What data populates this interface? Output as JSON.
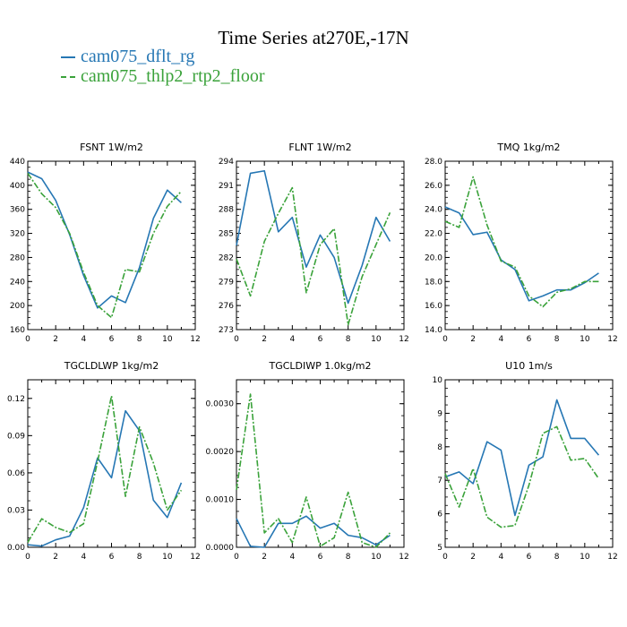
{
  "figure": {
    "title": "Time Series at270E,-17N"
  },
  "legend": [
    {
      "name": "cam075_dflt_rg",
      "color": "#2677b4",
      "style": "solid"
    },
    {
      "name": "cam075_thlp2_rtp2_floor",
      "color": "#3aa23a",
      "style": "dashdot"
    }
  ],
  "chart_data": [
    {
      "type": "line",
      "title": "FSNT   1W/m2",
      "x": [
        0,
        1,
        2,
        3,
        4,
        5,
        6,
        7,
        8,
        9,
        10,
        11
      ],
      "xlim": [
        0,
        12
      ],
      "xticks": [
        0,
        2,
        4,
        6,
        8,
        10,
        12
      ],
      "ylim": [
        160,
        440
      ],
      "yticks": [
        160,
        200,
        240,
        280,
        320,
        360,
        400,
        440
      ],
      "ytick_labels": [
        "160",
        "200",
        "240",
        "280",
        "320",
        "360",
        "400",
        "440"
      ],
      "series": [
        {
          "name": "cam075_dflt_rg",
          "values": [
            422,
            411,
            375,
            318,
            250,
            196,
            216,
            205,
            263,
            345,
            392,
            371
          ]
        },
        {
          "name": "cam075_thlp2_rtp2_floor",
          "values": [
            420,
            386,
            363,
            320,
            255,
            200,
            180,
            260,
            256,
            320,
            365,
            390
          ]
        }
      ]
    },
    {
      "type": "line",
      "title": "FLNT   1W/m2",
      "x": [
        0,
        1,
        2,
        3,
        4,
        5,
        6,
        7,
        8,
        9,
        10,
        11
      ],
      "xlim": [
        0,
        12
      ],
      "xticks": [
        0,
        2,
        4,
        6,
        8,
        10,
        12
      ],
      "ylim": [
        273,
        294
      ],
      "yticks": [
        273,
        276,
        279,
        282,
        285,
        288,
        291,
        294
      ],
      "ytick_labels": [
        "273",
        "276",
        "279",
        "282",
        "285",
        "288",
        "291",
        "294"
      ],
      "series": [
        {
          "name": "cam075_dflt_rg",
          "values": [
            283.5,
            292.5,
            292.8,
            285.2,
            287.0,
            280.8,
            284.8,
            282.0,
            276.3,
            281.0,
            287.0,
            284.0
          ]
        },
        {
          "name": "cam075_thlp2_rtp2_floor",
          "values": [
            281.8,
            277.2,
            284.0,
            287.5,
            290.7,
            277.6,
            283.6,
            285.6,
            273.6,
            279.6,
            283.6,
            287.6
          ]
        }
      ]
    },
    {
      "type": "line",
      "title": "TMQ   1kg/m2",
      "x": [
        0,
        1,
        2,
        3,
        4,
        5,
        6,
        7,
        8,
        9,
        10,
        11
      ],
      "xlim": [
        0,
        12
      ],
      "xticks": [
        0,
        2,
        4,
        6,
        8,
        10,
        12
      ],
      "ylim": [
        14,
        28
      ],
      "yticks": [
        14,
        16,
        18,
        20,
        22,
        24,
        26,
        28
      ],
      "ytick_labels": [
        "14.0",
        "16.0",
        "18.0",
        "20.0",
        "22.0",
        "24.0",
        "26.0",
        "28.0"
      ],
      "series": [
        {
          "name": "cam075_dflt_rg",
          "values": [
            24.2,
            23.7,
            21.9,
            22.1,
            19.8,
            19.0,
            16.4,
            16.8,
            17.3,
            17.3,
            17.9,
            18.7
          ]
        },
        {
          "name": "cam075_thlp2_rtp2_floor",
          "values": [
            23.0,
            22.5,
            26.7,
            22.7,
            19.7,
            19.2,
            16.8,
            15.9,
            17.1,
            17.4,
            18.0,
            18.0
          ]
        }
      ]
    },
    {
      "type": "line",
      "title": "TGCLDLWP   1kg/m2",
      "x": [
        0,
        1,
        2,
        3,
        4,
        5,
        6,
        7,
        8,
        9,
        10,
        11
      ],
      "xlim": [
        0,
        12
      ],
      "xticks": [
        0,
        2,
        4,
        6,
        8,
        10,
        12
      ],
      "ylim": [
        0,
        0.135
      ],
      "yticks": [
        0,
        0.03,
        0.06,
        0.09,
        0.12
      ],
      "ytick_labels": [
        "0.00",
        "0.03",
        "0.06",
        "0.09",
        "0.12"
      ],
      "series": [
        {
          "name": "cam075_dflt_rg",
          "values": [
            0.002,
            0.001,
            0.006,
            0.009,
            0.032,
            0.072,
            0.056,
            0.11,
            0.094,
            0.038,
            0.024,
            0.052
          ]
        },
        {
          "name": "cam075_thlp2_rtp2_floor",
          "values": [
            0.004,
            0.023,
            0.016,
            0.012,
            0.019,
            0.069,
            0.122,
            0.041,
            0.097,
            0.068,
            0.03,
            0.046
          ]
        }
      ]
    },
    {
      "type": "line",
      "title": "TGCLDIWP   1.0kg/m2",
      "x": [
        0,
        1,
        2,
        3,
        4,
        5,
        6,
        7,
        8,
        9,
        10,
        11
      ],
      "xlim": [
        0,
        12
      ],
      "xticks": [
        0,
        2,
        4,
        6,
        8,
        10,
        12
      ],
      "ylim": [
        0,
        0.0035
      ],
      "yticks": [
        0,
        0.001,
        0.002,
        0.003
      ],
      "ytick_labels": [
        "0.0000",
        "0.0010",
        "0.0020",
        "0.0030"
      ],
      "series": [
        {
          "name": "cam075_dflt_rg",
          "values": [
            0.0006,
            2e-05,
            0.0,
            0.0005,
            0.0005,
            0.00065,
            0.0004,
            0.0005,
            0.00025,
            0.0002,
            5e-05,
            0.00025
          ]
        },
        {
          "name": "cam075_thlp2_rtp2_floor",
          "values": [
            0.0012,
            0.0032,
            0.0003,
            0.0006,
            0.0001,
            0.00105,
            2e-05,
            0.0002,
            0.00115,
            0.0001,
            0.0,
            0.0003
          ]
        }
      ]
    },
    {
      "type": "line",
      "title": "U10   1m/s",
      "x": [
        0,
        1,
        2,
        3,
        4,
        5,
        6,
        7,
        8,
        9,
        10,
        11
      ],
      "xlim": [
        0,
        12
      ],
      "xticks": [
        0,
        2,
        4,
        6,
        8,
        10,
        12
      ],
      "ylim": [
        5,
        10
      ],
      "yticks": [
        5,
        6,
        7,
        8,
        9,
        10
      ],
      "ytick_labels": [
        "5",
        "6",
        "7",
        "8",
        "9",
        "10"
      ],
      "series": [
        {
          "name": "cam075_dflt_rg",
          "values": [
            7.1,
            7.25,
            6.9,
            8.15,
            7.9,
            5.95,
            7.45,
            7.7,
            9.4,
            8.25,
            8.25,
            7.75
          ]
        },
        {
          "name": "cam075_thlp2_rtp2_floor",
          "values": [
            7.2,
            6.2,
            7.35,
            5.9,
            5.6,
            5.65,
            6.85,
            8.4,
            8.6,
            7.6,
            7.65,
            7.05
          ]
        }
      ]
    }
  ]
}
